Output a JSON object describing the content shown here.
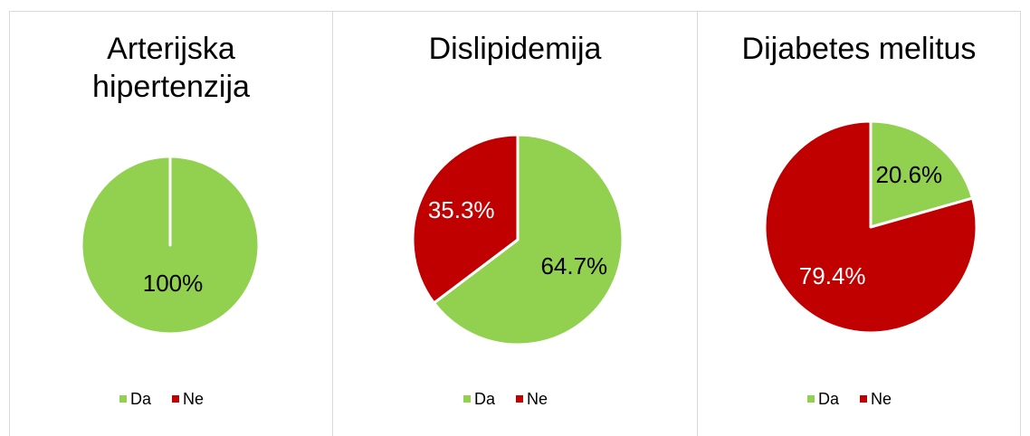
{
  "chart_data": [
    {
      "type": "pie",
      "title": "Arterijska hipertenzija",
      "categories": [
        "Da",
        "Ne"
      ],
      "values": [
        100,
        0
      ],
      "value_labels": [
        "100%",
        null
      ],
      "colors": [
        "#92d050",
        "#c00000"
      ]
    },
    {
      "type": "pie",
      "title": "Dislipidemija",
      "categories": [
        "Da",
        "Ne"
      ],
      "values": [
        64.7,
        35.3
      ],
      "value_labels": [
        "64.7%",
        "35.3%"
      ],
      "colors": [
        "#92d050",
        "#c00000"
      ]
    },
    {
      "type": "pie",
      "title": "Dijabetes melitus",
      "categories": [
        "Da",
        "Ne"
      ],
      "values": [
        20.6,
        79.4
      ],
      "value_labels": [
        "20.6%",
        "79.4%"
      ],
      "colors": [
        "#92d050",
        "#c00000"
      ]
    }
  ]
}
